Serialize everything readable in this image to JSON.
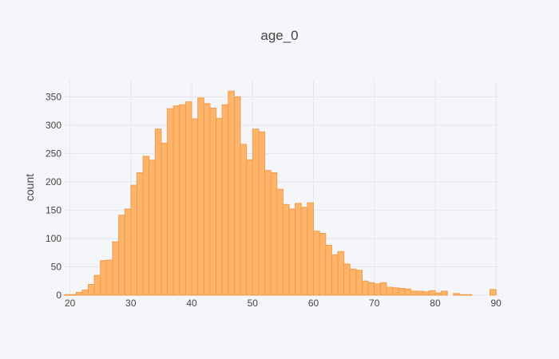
{
  "chart_data": {
    "type": "bar",
    "title": "age_0",
    "xlabel": "",
    "ylabel": "count",
    "xlim": [
      19,
      90.5
    ],
    "ylim": [
      0,
      380
    ],
    "x_ticks": [
      20,
      30,
      40,
      50,
      60,
      70,
      80,
      90
    ],
    "y_ticks": [
      0,
      50,
      100,
      150,
      200,
      250,
      300,
      350
    ],
    "grid": true,
    "bin_width": 1,
    "bins_start": [
      19,
      20,
      21,
      22,
      23,
      24,
      25,
      26,
      27,
      28,
      29,
      30,
      31,
      32,
      33,
      34,
      35,
      36,
      37,
      38,
      39,
      40,
      41,
      42,
      43,
      44,
      45,
      46,
      47,
      48,
      49,
      50,
      51,
      52,
      53,
      54,
      55,
      56,
      57,
      58,
      59,
      60,
      61,
      62,
      63,
      64,
      65,
      66,
      67,
      68,
      69,
      70,
      71,
      72,
      73,
      74,
      75,
      76,
      77,
      78,
      79,
      80,
      81,
      82,
      83,
      84,
      85,
      86,
      87,
      88,
      89
    ],
    "values": [
      1,
      1,
      5,
      9,
      19,
      35,
      61,
      62,
      94,
      141,
      152,
      194,
      216,
      245,
      238,
      293,
      268,
      329,
      334,
      336,
      341,
      311,
      348,
      338,
      330,
      312,
      336,
      360,
      350,
      266,
      239,
      293,
      288,
      220,
      216,
      187,
      160,
      152,
      162,
      155,
      163,
      113,
      109,
      88,
      71,
      77,
      55,
      46,
      44,
      25,
      22,
      20,
      22,
      14,
      13,
      12,
      11,
      7,
      7,
      6,
      8,
      4,
      7,
      0,
      3,
      1,
      1,
      0,
      0,
      0,
      10
    ],
    "colors": {
      "bar_fill": "#ffb46b",
      "bar_stroke": "#f39c48",
      "background": "#f5f6f9",
      "grid": "#e3e6ee",
      "text": "#444444"
    }
  }
}
